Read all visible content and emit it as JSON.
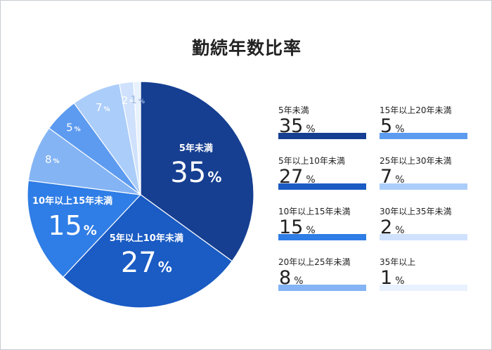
{
  "chart_data": {
    "type": "pie",
    "title": "勤続年数比率",
    "unit": "%",
    "categories": [
      "5年未満",
      "5年以上10年未満",
      "10年以上15年未満",
      "15年以上20年未満",
      "20年以上25年未満",
      "25年以上30年未満",
      "30年以上35年未満",
      "35年以上"
    ],
    "values": [
      35,
      27,
      15,
      5,
      8,
      7,
      2,
      1
    ],
    "slice_order": [
      0,
      1,
      2,
      4,
      3,
      5,
      6,
      7
    ],
    "colors": [
      "#163f91",
      "#1a5bc4",
      "#2f7de6",
      "#5d9bf0",
      "#84b4f4",
      "#abcdfa",
      "#cfe1fc",
      "#e8f1fe"
    ],
    "start_angle_deg": 0,
    "direction": "clockwise"
  },
  "legend": {
    "columns": [
      [
        0,
        1,
        2,
        4
      ],
      [
        3,
        5,
        6,
        7
      ]
    ]
  }
}
